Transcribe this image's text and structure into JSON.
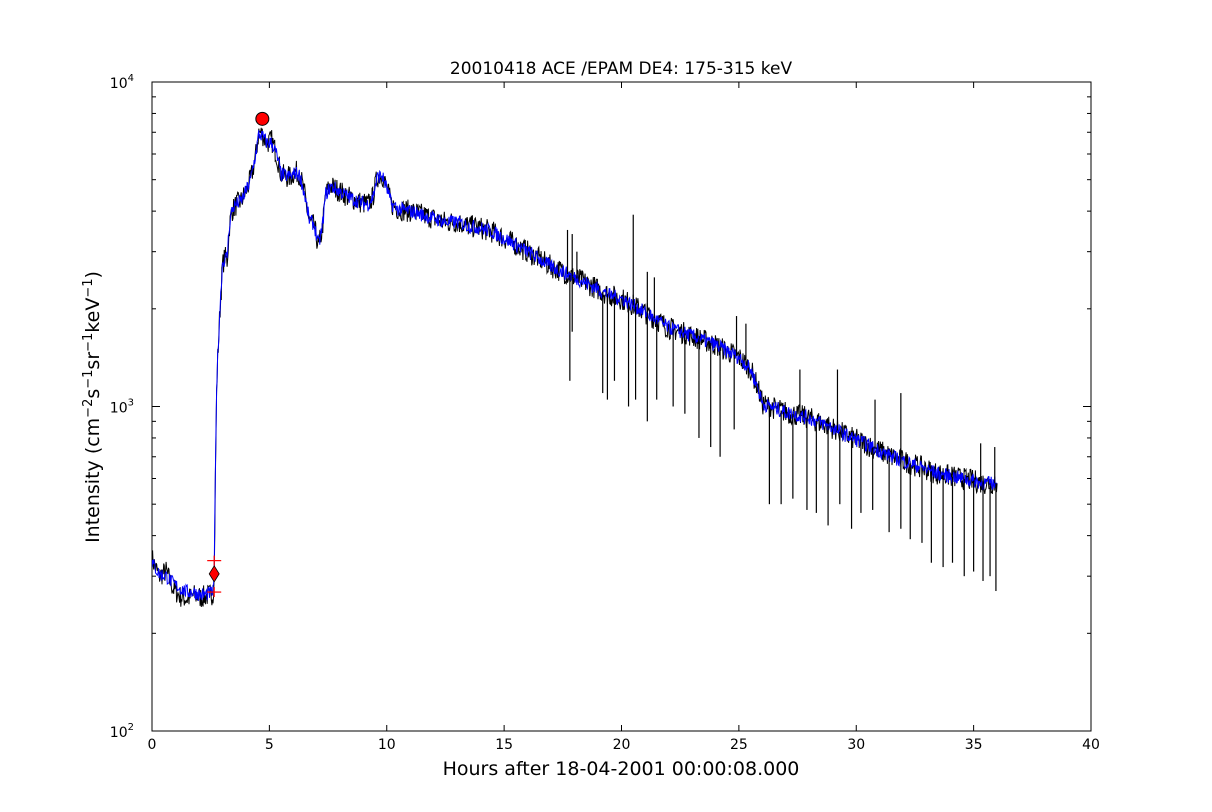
{
  "chart_data": {
    "type": "line",
    "title": "20010418 ACE /EPAM DE4: 175-315 keV",
    "xlabel": "Hours after 18-04-2001 00:00:08.000",
    "ylabel_main": "Intensity (cm",
    "ylabel_parts": [
      {
        "t": "Intensity (cm",
        "sup": false
      },
      {
        "t": "−2",
        "sup": true
      },
      {
        "t": "s",
        "sup": false
      },
      {
        "t": "−1",
        "sup": true
      },
      {
        "t": "sr",
        "sup": false
      },
      {
        "t": "−1",
        "sup": true
      },
      {
        "t": "keV",
        "sup": false
      },
      {
        "t": "−1",
        "sup": true
      },
      {
        "t": ")",
        "sup": false
      }
    ],
    "xlim": [
      0,
      40
    ],
    "ylim": [
      100,
      10000
    ],
    "yscale": "log",
    "x_ticks": [
      0,
      5,
      10,
      15,
      20,
      25,
      30,
      35,
      40
    ],
    "y_ticks": [
      {
        "value": 100,
        "base": "10",
        "exp": "2"
      },
      {
        "value": 1000,
        "base": "10",
        "exp": "3"
      },
      {
        "value": 10000,
        "base": "10",
        "exp": "4"
      }
    ],
    "grid": false,
    "series": [
      {
        "color": "#000000",
        "x": [
          0,
          0.3,
          0.6,
          0.9,
          1.2,
          1.5,
          1.8,
          2.1,
          2.4,
          2.6,
          2.65,
          2.7,
          2.75,
          2.8,
          2.85,
          2.9,
          3.0,
          3.1,
          3.2,
          3.3,
          3.4,
          3.5,
          3.6,
          3.8,
          4.0,
          4.2,
          4.4,
          4.55,
          4.7,
          4.9,
          5.1,
          5.3,
          5.5,
          5.7,
          5.9,
          6.1,
          6.3,
          6.5,
          6.7,
          6.9,
          7.1,
          7.25,
          7.4,
          7.6,
          7.8,
          8.0,
          8.3,
          8.6,
          8.9,
          9.2,
          9.4,
          9.6,
          9.8,
          10.0,
          10.2,
          10.5,
          11,
          11.5,
          12,
          12.5,
          13,
          13.5,
          14,
          14.5,
          15,
          15.5,
          16,
          16.5,
          17,
          17.5,
          18,
          18.5,
          19,
          19.5,
          20,
          20.5,
          21,
          21.5,
          22,
          22.5,
          23,
          23.5,
          24,
          24.5,
          25,
          25.5,
          25.8,
          26.0,
          26.5,
          27,
          27.5,
          28,
          28.5,
          29,
          29.5,
          30,
          30.5,
          31,
          31.5,
          32,
          32.5,
          33,
          33.5,
          34,
          34.5,
          35,
          35.5,
          36
        ],
        "y": [
          340,
          300,
          310,
          275,
          260,
          255,
          262,
          258,
          262,
          265,
          300,
          600,
          1100,
          1400,
          1700,
          2000,
          2700,
          2900,
          2800,
          3600,
          4000,
          4100,
          4200,
          4300,
          4600,
          5000,
          5800,
          7000,
          6900,
          6500,
          6600,
          6000,
          5200,
          5100,
          5100,
          5300,
          5200,
          4500,
          3700,
          3600,
          3100,
          3500,
          4500,
          4800,
          4700,
          4600,
          4450,
          4350,
          4250,
          4200,
          4400,
          5100,
          5200,
          4700,
          4200,
          4050,
          4000,
          3900,
          3800,
          3700,
          3700,
          3600,
          3550,
          3450,
          3300,
          3150,
          3000,
          2850,
          2700,
          2600,
          2500,
          2400,
          2300,
          2200,
          2150,
          2050,
          1950,
          1850,
          1750,
          1700,
          1650,
          1600,
          1550,
          1480,
          1420,
          1300,
          1150,
          1020,
          990,
          960,
          940,
          920,
          890,
          860,
          820,
          790,
          760,
          730,
          700,
          680,
          660,
          640,
          620,
          610,
          600,
          590,
          580,
          580
        ]
      },
      {
        "color": "#0000ff",
        "x": [
          0,
          0.3,
          0.6,
          0.9,
          1.2,
          1.5,
          1.8,
          2.1,
          2.4,
          2.6,
          2.65,
          2.7,
          2.75,
          2.8,
          2.85,
          2.9,
          3.0,
          3.1,
          3.2,
          3.3,
          3.4,
          3.5,
          3.6,
          3.8,
          4.0,
          4.2,
          4.4,
          4.55,
          4.7,
          4.9,
          5.1,
          5.3,
          5.5,
          5.7,
          5.9,
          6.1,
          6.3,
          6.5,
          6.7,
          6.9,
          7.1,
          7.25,
          7.4,
          7.6,
          7.8,
          8.0,
          8.3,
          8.6,
          8.9,
          9.2,
          9.4,
          9.6,
          9.8,
          10.0,
          10.2,
          10.5,
          11,
          11.5,
          12,
          12.5,
          13,
          13.5,
          14,
          14.5,
          15,
          15.5,
          16,
          16.5,
          17,
          17.5,
          18,
          18.5,
          19,
          19.5,
          20,
          20.5,
          21,
          21.5,
          22,
          22.5,
          23,
          23.5,
          24,
          24.5,
          25,
          25.5,
          25.8,
          26.0,
          26.5,
          27,
          27.5,
          28,
          28.5,
          29,
          29.5,
          30,
          30.5,
          31,
          31.5,
          32,
          32.5,
          33,
          33.5,
          34,
          34.5,
          35,
          35.5,
          36
        ],
        "y": [
          330,
          305,
          300,
          285,
          275,
          268,
          268,
          262,
          265,
          268,
          310,
          620,
          1150,
          1400,
          1700,
          2050,
          2750,
          2850,
          2900,
          3650,
          4000,
          4150,
          4200,
          4300,
          4600,
          5000,
          5900,
          6900,
          6800,
          6500,
          6500,
          6000,
          5200,
          5150,
          5100,
          5250,
          5150,
          4500,
          3750,
          3650,
          3150,
          3550,
          4500,
          4750,
          4700,
          4600,
          4450,
          4350,
          4250,
          4200,
          4400,
          5100,
          5150,
          4700,
          4200,
          4050,
          4000,
          3900,
          3800,
          3700,
          3700,
          3600,
          3550,
          3450,
          3300,
          3150,
          3000,
          2850,
          2700,
          2600,
          2500,
          2400,
          2300,
          2200,
          2150,
          2050,
          1950,
          1850,
          1750,
          1700,
          1650,
          1600,
          1550,
          1480,
          1420,
          1300,
          1150,
          1020,
          990,
          960,
          940,
          920,
          890,
          860,
          820,
          790,
          760,
          730,
          700,
          680,
          660,
          640,
          620,
          610,
          600,
          590,
          580,
          580
        ]
      }
    ],
    "spikes": [
      {
        "x": 17.8,
        "y": 1200
      },
      {
        "x": 17.9,
        "y": 1700
      },
      {
        "x": 19.2,
        "y": 1100
      },
      {
        "x": 19.4,
        "y": 1050
      },
      {
        "x": 19.7,
        "y": 1200
      },
      {
        "x": 20.3,
        "y": 1000
      },
      {
        "x": 20.6,
        "y": 1050
      },
      {
        "x": 21.1,
        "y": 900
      },
      {
        "x": 21.5,
        "y": 1050
      },
      {
        "x": 22.2,
        "y": 1000
      },
      {
        "x": 22.7,
        "y": 950
      },
      {
        "x": 23.3,
        "y": 800
      },
      {
        "x": 23.8,
        "y": 750
      },
      {
        "x": 24.2,
        "y": 700
      },
      {
        "x": 24.8,
        "y": 850
      },
      {
        "x": 26.3,
        "y": 500
      },
      {
        "x": 26.8,
        "y": 500
      },
      {
        "x": 27.3,
        "y": 520
      },
      {
        "x": 27.9,
        "y": 480
      },
      {
        "x": 28.3,
        "y": 470
      },
      {
        "x": 28.8,
        "y": 430
      },
      {
        "x": 29.3,
        "y": 500
      },
      {
        "x": 29.8,
        "y": 420
      },
      {
        "x": 30.2,
        "y": 470
      },
      {
        "x": 30.7,
        "y": 480
      },
      {
        "x": 31.4,
        "y": 410
      },
      {
        "x": 31.9,
        "y": 420
      },
      {
        "x": 32.3,
        "y": 390
      },
      {
        "x": 32.8,
        "y": 380
      },
      {
        "x": 33.2,
        "y": 330
      },
      {
        "x": 33.7,
        "y": 320
      },
      {
        "x": 34.1,
        "y": 330
      },
      {
        "x": 34.6,
        "y": 300
      },
      {
        "x": 35.0,
        "y": 310
      },
      {
        "x": 35.4,
        "y": 290
      },
      {
        "x": 35.7,
        "y": 300
      },
      {
        "x": 35.95,
        "y": 270
      }
    ],
    "up_spikes": [
      {
        "x": 17.7,
        "y": 3500
      },
      {
        "x": 17.9,
        "y": 3400
      },
      {
        "x": 18.1,
        "y": 3000
      },
      {
        "x": 20.5,
        "y": 3900
      },
      {
        "x": 21.1,
        "y": 2600
      },
      {
        "x": 21.4,
        "y": 2500
      },
      {
        "x": 24.9,
        "y": 1900
      },
      {
        "x": 25.3,
        "y": 1800
      },
      {
        "x": 27.6,
        "y": 1300
      },
      {
        "x": 29.2,
        "y": 1300
      },
      {
        "x": 30.8,
        "y": 1050
      },
      {
        "x": 31.9,
        "y": 1100
      },
      {
        "x": 35.3,
        "y": 770
      },
      {
        "x": 35.9,
        "y": 750
      }
    ],
    "markers": [
      {
        "kind": "peak-circle",
        "x": 4.7,
        "y": 7700,
        "color": "#ff0000"
      },
      {
        "kind": "onset-diamond",
        "x": 2.65,
        "y": 305,
        "color": "#ff0000"
      },
      {
        "kind": "plus",
        "x": 2.65,
        "y": 335,
        "color": "#ff0000"
      },
      {
        "kind": "plus",
        "x": 2.65,
        "y": 268,
        "color": "#ff0000"
      }
    ]
  }
}
